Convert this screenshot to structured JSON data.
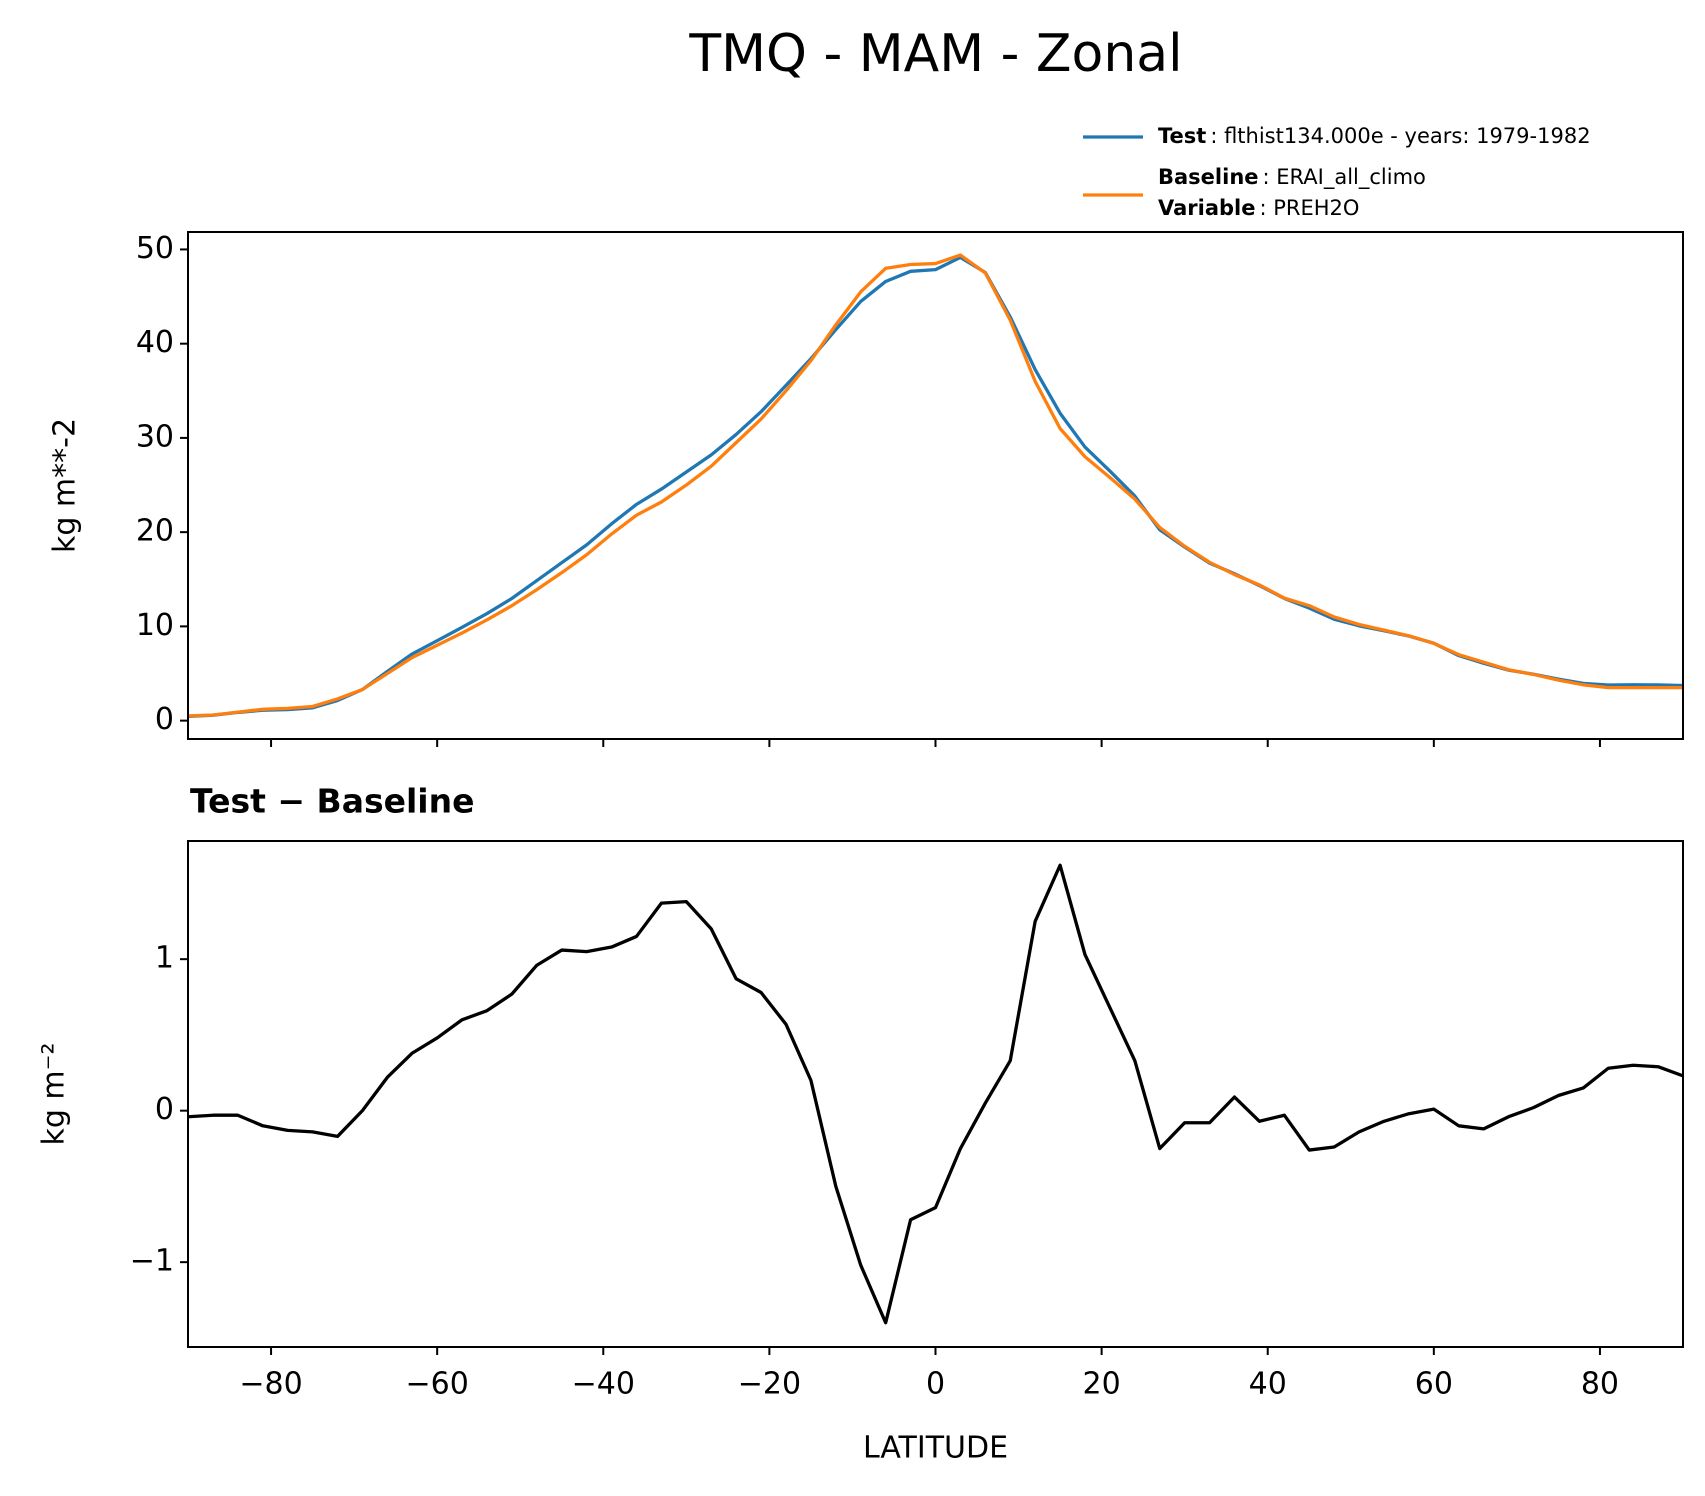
{
  "title": "TMQ - MAM - Zonal",
  "chart_data": [
    {
      "type": "line",
      "ylabel": "kg m**-2",
      "x": [
        -90,
        -87,
        -84,
        -81,
        -78,
        -75,
        -72,
        -69,
        -66,
        -63,
        -60,
        -57,
        -54,
        -51,
        -48,
        -45,
        -42,
        -39,
        -36,
        -33,
        -30,
        -27,
        -24,
        -21,
        -18,
        -15,
        -12,
        -9,
        -6,
        -3,
        0,
        3,
        6,
        9,
        12,
        15,
        18,
        21,
        24,
        27,
        30,
        33,
        36,
        39,
        42,
        45,
        48,
        51,
        54,
        57,
        60,
        63,
        66,
        69,
        72,
        75,
        78,
        81,
        84,
        87,
        90
      ],
      "series": [
        {
          "name": "Test",
          "detail": ": flthist134.000e - years: 1979-1982",
          "color": "#1f77b4",
          "values": [
            0.46,
            0.57,
            0.87,
            1.1,
            1.17,
            1.36,
            2.13,
            3.3,
            5.22,
            7.08,
            8.48,
            9.9,
            11.36,
            12.97,
            14.86,
            16.76,
            18.65,
            20.88,
            22.95,
            24.57,
            26.38,
            28.2,
            30.37,
            32.78,
            35.57,
            38.4,
            41.5,
            44.48,
            46.6,
            47.68,
            47.86,
            49.15,
            47.55,
            42.83,
            37.25,
            32.62,
            29.03,
            26.48,
            23.83,
            20.25,
            18.42,
            16.72,
            15.59,
            14.33,
            12.97,
            11.94,
            10.76,
            10.06,
            9.53,
            8.98,
            8.21,
            6.9,
            6.08,
            5.36,
            4.92,
            4.4,
            3.95,
            3.78,
            3.8,
            3.79,
            3.73
          ]
        },
        {
          "name": "Baseline",
          "detail": ": ERAI_all_climo",
          "color": "#ff7f0e",
          "values": [
            0.5,
            0.6,
            0.9,
            1.2,
            1.3,
            1.5,
            2.3,
            3.3,
            5.0,
            6.7,
            8.0,
            9.3,
            10.7,
            12.2,
            13.9,
            15.7,
            17.6,
            19.8,
            21.8,
            23.2,
            25.0,
            27.0,
            29.5,
            32.0,
            35.0,
            38.2,
            42.0,
            45.5,
            48.0,
            48.4,
            48.5,
            49.4,
            47.5,
            42.5,
            36.0,
            31.0,
            28.0,
            25.8,
            23.5,
            20.5,
            18.5,
            16.8,
            15.5,
            14.4,
            13.0,
            12.2,
            11.0,
            10.2,
            9.6,
            9.0,
            8.2,
            7.0,
            6.2,
            5.4,
            4.9,
            4.3,
            3.8,
            3.5,
            3.5,
            3.5,
            3.5
          ]
        }
      ],
      "legend_extra": {
        "name": "Variable",
        "detail": ": PREH2O"
      },
      "xlim": [
        -90,
        90
      ],
      "xticks": [
        -80,
        -60,
        -40,
        -20,
        0,
        20,
        40,
        60,
        80
      ],
      "ylim": [
        -1.95,
        51.85
      ],
      "yticks": [
        0,
        10,
        20,
        30,
        40,
        50
      ]
    },
    {
      "type": "line",
      "title": "Test − Baseline",
      "ylabel": "kg m⁻²",
      "xlabel": "LATITUDE",
      "x": [
        -90,
        -87,
        -84,
        -81,
        -78,
        -75,
        -72,
        -69,
        -66,
        -63,
        -60,
        -57,
        -54,
        -51,
        -48,
        -45,
        -42,
        -39,
        -36,
        -33,
        -30,
        -27,
        -24,
        -21,
        -18,
        -15,
        -12,
        -9,
        -6,
        -3,
        0,
        3,
        6,
        9,
        12,
        15,
        18,
        21,
        24,
        27,
        30,
        33,
        36,
        39,
        42,
        45,
        48,
        51,
        54,
        57,
        60,
        63,
        66,
        69,
        72,
        75,
        78,
        81,
        84,
        87,
        90
      ],
      "values": [
        -0.04,
        -0.03,
        -0.03,
        -0.1,
        -0.13,
        -0.14,
        -0.17,
        0.0,
        0.22,
        0.38,
        0.48,
        0.6,
        0.66,
        0.77,
        0.96,
        1.06,
        1.05,
        1.08,
        1.15,
        1.37,
        1.38,
        1.2,
        0.87,
        0.78,
        0.57,
        0.2,
        -0.5,
        -1.02,
        -1.4,
        -0.72,
        -0.64,
        -0.25,
        0.05,
        0.33,
        1.25,
        1.62,
        1.03,
        0.68,
        0.33,
        -0.25,
        -0.08,
        -0.08,
        0.09,
        -0.07,
        -0.03,
        -0.26,
        -0.24,
        -0.14,
        -0.07,
        -0.02,
        0.01,
        -0.1,
        -0.12,
        -0.04,
        0.02,
        0.1,
        0.15,
        0.28,
        0.3,
        0.29,
        0.23
      ],
      "color": "#000000",
      "xlim": [
        -90,
        90
      ],
      "xticks": [
        {
          "value": -80,
          "label": "−80"
        },
        {
          "value": -60,
          "label": "−60"
        },
        {
          "value": -40,
          "label": "−40"
        },
        {
          "value": -20,
          "label": "−20"
        },
        0,
        20,
        40,
        60,
        80
      ],
      "ylim": [
        -1.56,
        1.78
      ],
      "yticks": [
        {
          "value": -1,
          "label": "−1"
        },
        0,
        1
      ]
    }
  ]
}
